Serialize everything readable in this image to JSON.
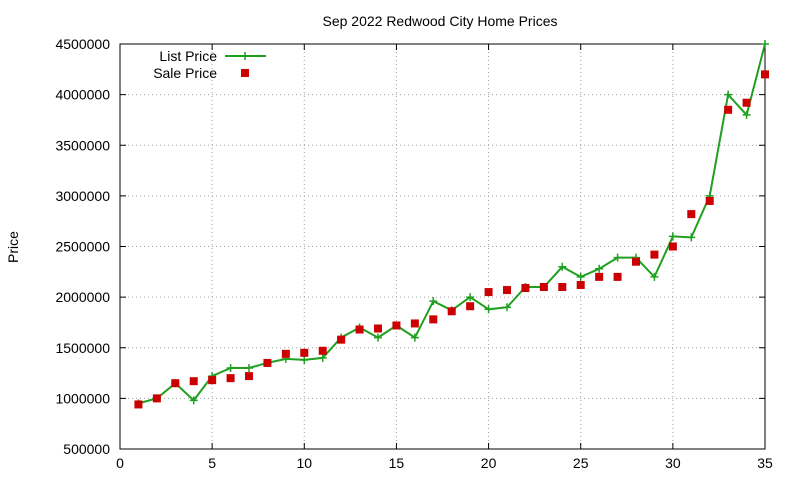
{
  "chart_data": {
    "type": "line",
    "title": "Sep 2022 Redwood City Home Prices",
    "xlabel": "",
    "ylabel": "Price",
    "xlim": [
      0,
      35
    ],
    "ylim": [
      500000,
      4500000
    ],
    "x_ticks": [
      "0",
      "5",
      "10",
      "15",
      "20",
      "25",
      "30",
      "35"
    ],
    "y_ticks": [
      "500000",
      "1000000",
      "1500000",
      "2000000",
      "2500000",
      "3000000",
      "3500000",
      "4000000",
      "4500000"
    ],
    "grid": true,
    "legend_position": "top-left",
    "x": [
      1,
      2,
      3,
      4,
      5,
      6,
      7,
      8,
      9,
      10,
      11,
      12,
      13,
      14,
      15,
      16,
      17,
      18,
      19,
      20,
      21,
      22,
      23,
      24,
      25,
      26,
      27,
      28,
      29,
      30,
      31,
      32,
      33,
      34,
      35
    ],
    "series": [
      {
        "name": "List Price",
        "style": "line-points",
        "marker": "plus",
        "color": "#1fa01f",
        "values": [
          950000,
          1000000,
          1150000,
          980000,
          1220000,
          1300000,
          1300000,
          1350000,
          1390000,
          1380000,
          1400000,
          1600000,
          1700000,
          1600000,
          1720000,
          1600000,
          1960000,
          1870000,
          2000000,
          1880000,
          1900000,
          2100000,
          2100000,
          2300000,
          2200000,
          2280000,
          2390000,
          2390000,
          2200000,
          2600000,
          2590000,
          3000000,
          4000000,
          3800000,
          4500000
        ]
      },
      {
        "name": "Sale Price",
        "style": "points",
        "marker": "square",
        "color": "#cc0000",
        "values": [
          940000,
          1000000,
          1150000,
          1170000,
          1180000,
          1200000,
          1220000,
          1350000,
          1440000,
          1450000,
          1470000,
          1580000,
          1680000,
          1690000,
          1720000,
          1740000,
          1780000,
          1860000,
          1910000,
          2050000,
          2070000,
          2090000,
          2100000,
          2100000,
          2120000,
          2200000,
          2200000,
          2350000,
          2420000,
          2500000,
          2820000,
          2950000,
          3850000,
          3920000,
          4200000
        ]
      }
    ]
  }
}
